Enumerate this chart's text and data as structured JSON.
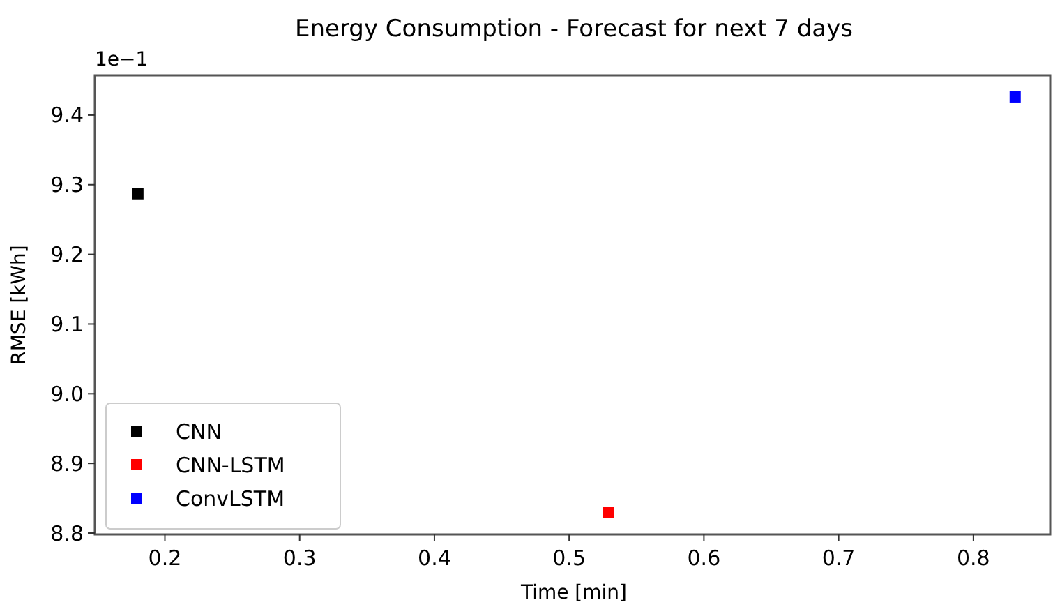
{
  "chart_data": {
    "type": "scatter",
    "title": "Energy Consumption - Forecast for next 7 days",
    "xlabel": "Time [min]",
    "ylabel": "RMSE [kWh]",
    "annotations": [
      "1e−1"
    ],
    "series": [
      {
        "name": "CNN",
        "color": "#000000",
        "x": [
          0.18
        ],
        "values": [
          9.287
        ]
      },
      {
        "name": "CNN-LSTM",
        "color": "#ff0000",
        "x": [
          0.529
        ],
        "values": [
          8.83
        ]
      },
      {
        "name": "ConvLSTM",
        "color": "#0000ff",
        "x": [
          0.831
        ],
        "values": [
          9.426
        ]
      }
    ],
    "xlim": [
      0.148,
      0.857
    ],
    "ylim": [
      8.798,
      9.457
    ],
    "xticks": [
      0.2,
      0.3,
      0.4,
      0.5,
      0.6,
      0.7,
      0.8
    ],
    "yticks": [
      8.8,
      8.9,
      {
        "value": 9,
        "label": "9.0"
      },
      9.1,
      9.2,
      9.3,
      9.4
    ],
    "marker": "square",
    "legend": "bottom left",
    "grid": false
  }
}
